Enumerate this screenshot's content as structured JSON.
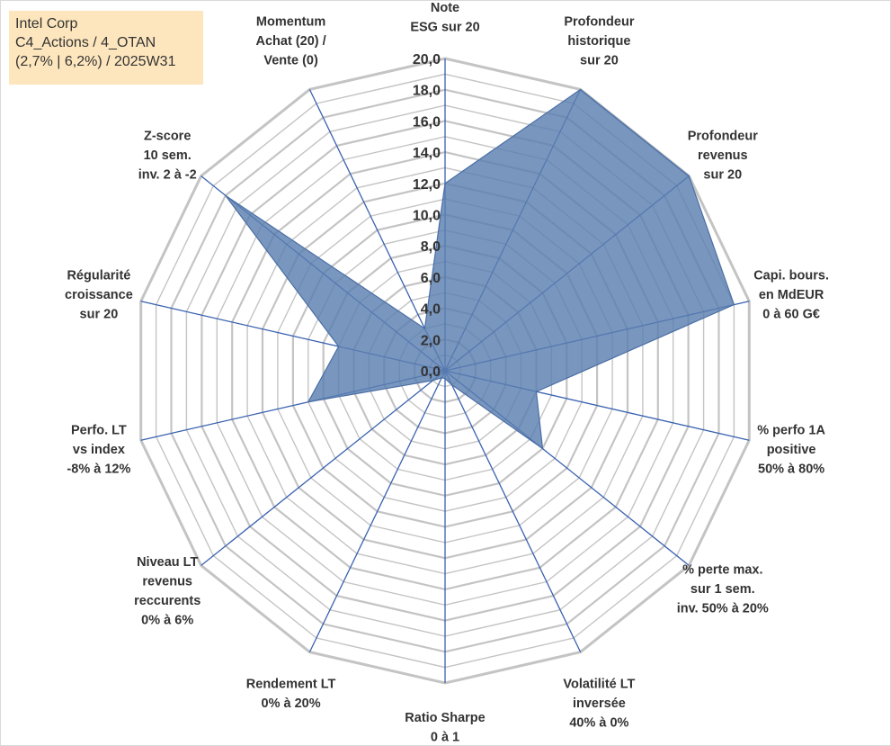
{
  "info_box": {
    "lines": [
      "Intel Corp",
      "C4_Actions / 4_OTAN",
      "(2,7% | 6,2%) / 2025W31"
    ]
  },
  "colors": {
    "grid": "#c4c4c4",
    "spoke": "#3a62b0",
    "fill": "#5b7fb0",
    "stroke": "#4a6fa5",
    "info_box_bg": "#fde6bd",
    "text": "#333333"
  },
  "chart_data": {
    "type": "radar",
    "title": "",
    "range": [
      0,
      20
    ],
    "grid_step": 1,
    "tick_values": [
      0,
      2,
      4,
      6,
      8,
      10,
      12,
      14,
      16,
      18,
      20
    ],
    "tick_labels": [
      "0,0",
      "2,0",
      "4,0",
      "6,0",
      "8,0",
      "10,0",
      "12,0",
      "14,0",
      "16,0",
      "18,0",
      "20,0"
    ],
    "axes": [
      {
        "label": [
          "Note",
          "ESG sur 20"
        ],
        "value": 12.0
      },
      {
        "label": [
          "Profondeur",
          "historique",
          "sur 20"
        ],
        "value": 20.0
      },
      {
        "label": [
          "Profondeur",
          "revenus",
          "sur 20"
        ],
        "value": 20.0
      },
      {
        "label": [
          "Capi. bours.",
          "en MdEUR",
          "0 à 60 G€"
        ],
        "value": 19.0
      },
      {
        "label": [
          "% perfo 1A",
          "positive",
          "50% à 80%"
        ],
        "value": 6.0
      },
      {
        "label": [
          "% perte max.",
          "sur 1 sem.",
          "inv. 50% à 20%"
        ],
        "value": 8.0
      },
      {
        "label": [
          "Volatilité LT",
          "inversée",
          "40% à 0%"
        ],
        "value": 1.0
      },
      {
        "label": [
          "Ratio Sharpe",
          "0 à 1"
        ],
        "value": 0.5
      },
      {
        "label": [
          "Rendement LT",
          "0% à 20%"
        ],
        "value": 0.5
      },
      {
        "label": [
          "Niveau LT",
          "revenus",
          "reccurents",
          "0% à 6%"
        ],
        "value": 1.0
      },
      {
        "label": [
          "Perfo. LT",
          "vs index",
          "-8% à 12%"
        ],
        "value": 9.0
      },
      {
        "label": [
          "Régularité",
          "croissance",
          "sur 20"
        ],
        "value": 7.0
      },
      {
        "label": [
          "Z-score",
          "10 sem.",
          "inv. 2 à -2"
        ],
        "value": 18.0
      },
      {
        "label": [
          "Momentum",
          "Achat (20) /",
          "Vente (0)"
        ],
        "value": 3.0
      }
    ]
  }
}
